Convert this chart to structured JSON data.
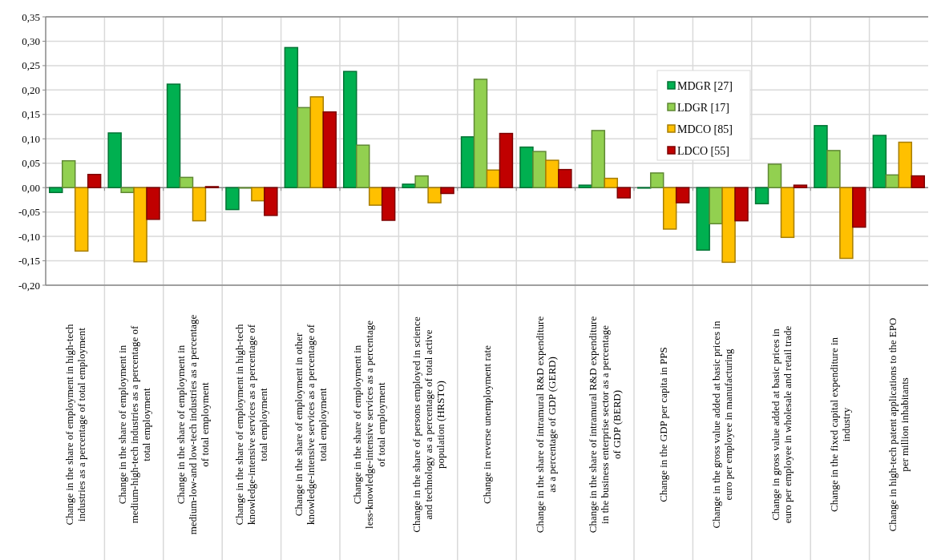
{
  "chart_data": {
    "type": "bar",
    "categories": [
      "Change in the share of employment in high-tech industries as a percentage of total employment",
      "Change in the share of employment in medium-high-tech industries as a percentage of total employment",
      "Change in the share of employment in medium-low-and low-tech industries as a percentage of total employment",
      "Change in the share of employment in high-tech knowledge-intensive services as a percentage of total employment",
      "Change in the share of employment in other knowledge-intensive services as a percentage of total employment",
      "Change in the share of employment in less-knowledge-intensive services as a percentage of total employment",
      "Change in the share of persons employed in science and technology as a percentage of total active population (HRSTO)",
      "Change in reverse unemployment rate",
      "Change in the share of intramural R&D expenditure as a percentage of GDP (GERD)",
      "Change in the share of intramural R&D expenditure in the business enterprise sector as a percentage of GDP (BERD)",
      "Change in the GDP per capita in PPS",
      "Change in the gross value added at basic prices in euro per employee in manufacturing",
      "Change in gross value added at basic prices in euro per employee in wholesale and retail trade",
      "Change in the fixed capital expenditure in industry",
      "Change in high-tech patent applications to the EPO per million inhabitants"
    ],
    "series": [
      {
        "name": "MDGR [27]",
        "color": "#00b050",
        "values": [
          -0.01,
          0.112,
          0.212,
          -0.045,
          0.287,
          0.238,
          0.007,
          0.104,
          0.083,
          0.005,
          -0.001,
          -0.128,
          -0.033,
          0.127,
          0.107
        ]
      },
      {
        "name": "LDGR [17]",
        "color": "#92d050",
        "values": [
          0.055,
          -0.01,
          0.021,
          -0.001,
          0.164,
          0.087,
          0.024,
          0.222,
          0.074,
          0.117,
          0.03,
          -0.074,
          0.048,
          0.076,
          0.026
        ]
      },
      {
        "name": "MDCO [85]",
        "color": "#ffc000",
        "values": [
          -0.13,
          -0.152,
          -0.068,
          -0.027,
          0.186,
          -0.036,
          -0.031,
          0.036,
          0.056,
          0.019,
          -0.085,
          -0.153,
          -0.102,
          -0.145,
          0.093
        ]
      },
      {
        "name": "LDCO [55]",
        "color": "#c00000",
        "values": [
          0.027,
          -0.065,
          0.002,
          -0.057,
          0.155,
          -0.067,
          -0.012,
          0.111,
          0.037,
          -0.021,
          -0.031,
          -0.068,
          0.005,
          -0.081,
          0.024
        ]
      }
    ],
    "ylim": [
      -0.2,
      0.35
    ],
    "yticks": [
      {
        "value": -0.2,
        "label": "-0,20"
      },
      {
        "value": -0.15,
        "label": "-0,15"
      },
      {
        "value": -0.1,
        "label": "-0,10"
      },
      {
        "value": -0.05,
        "label": "-0,05"
      },
      {
        "value": 0,
        "label": "0,00"
      },
      {
        "value": 0.05,
        "label": "0,05"
      },
      {
        "value": 0.1,
        "label": "0,10"
      },
      {
        "value": 0.15,
        "label": "0,15"
      },
      {
        "value": 0.2,
        "label": "0,20"
      },
      {
        "value": 0.25,
        "label": "0,25"
      },
      {
        "value": 0.3,
        "label": "0,30"
      },
      {
        "value": 0.35,
        "label": "0,35"
      }
    ],
    "grid": true,
    "legend": "top right"
  }
}
